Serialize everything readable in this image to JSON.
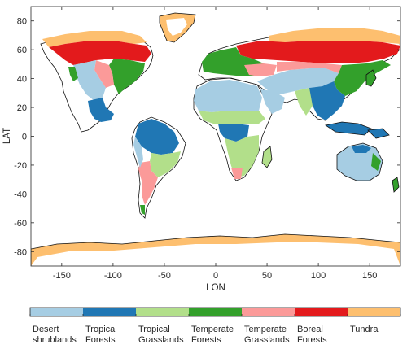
{
  "chart_data": {
    "type": "map",
    "xlabel": "LON",
    "ylabel": "LAT",
    "xlim": [
      -180,
      180
    ],
    "ylim": [
      -90,
      90
    ],
    "xticks": [
      "-150",
      "-100",
      "-50",
      "0",
      "50",
      "100",
      "150"
    ],
    "xtick_values": [
      -150,
      -100,
      -50,
      0,
      50,
      100,
      150
    ],
    "yticks": [
      "80",
      "60",
      "40",
      "20",
      "0",
      "-20",
      "-40",
      "-60",
      "-80"
    ],
    "ytick_values": [
      80,
      60,
      40,
      20,
      0,
      -20,
      -40,
      -60,
      -80
    ],
    "grid": false,
    "legend_placement": "bottom",
    "categories": [
      {
        "label_line1": "Desert",
        "label_line2": "shrublands",
        "color": "#a6cde3"
      },
      {
        "label_line1": "Tropical",
        "label_line2": "Forests",
        "color": "#2077b4"
      },
      {
        "label_line1": "Tropical",
        "label_line2": "Grasslands",
        "color": "#b2df8a"
      },
      {
        "label_line1": "Temperate",
        "label_line2": "Forests",
        "color": "#33a02b"
      },
      {
        "label_line1": "Temperate",
        "label_line2": "Grasslands",
        "color": "#fb9a99"
      },
      {
        "label_line1": "Boreal",
        "label_line2": "Forests",
        "color": "#e31a1c"
      },
      {
        "label_line1": "Tundra",
        "label_line2": "",
        "color": "#fdbf6f"
      }
    ],
    "regions": [
      {
        "name": "North America tundra",
        "category": 6,
        "lon": [
          -168,
          -60
        ],
        "lat": [
          62,
          74
        ]
      },
      {
        "name": "Greenland tundra",
        "category": 6,
        "lon": [
          -58,
          -22
        ],
        "lat": [
          64,
          82
        ]
      },
      {
        "name": "North America boreal",
        "category": 5,
        "lon": [
          -165,
          -55
        ],
        "lat": [
          52,
          66
        ]
      },
      {
        "name": "North America temperate forest",
        "category": 3,
        "lon": [
          -95,
          -65
        ],
        "lat": [
          32,
          50
        ]
      },
      {
        "name": "North America grassland",
        "category": 4,
        "lon": [
          -112,
          -95
        ],
        "lat": [
          32,
          52
        ]
      },
      {
        "name": "North America desert",
        "category": 0,
        "lon": [
          -125,
          -100
        ],
        "lat": [
          24,
          40
        ]
      },
      {
        "name": "Central America tropical forest",
        "category": 1,
        "lon": [
          -108,
          -80
        ],
        "lat": [
          8,
          24
        ]
      },
      {
        "name": "Amazon tropical forest",
        "category": 1,
        "lon": [
          -78,
          -38
        ],
        "lat": [
          -16,
          10
        ]
      },
      {
        "name": "South America grassland",
        "category": 2,
        "lon": [
          -65,
          -40
        ],
        "lat": [
          -32,
          -12
        ]
      },
      {
        "name": "South America temperate grassland",
        "category": 4,
        "lon": [
          -72,
          -60
        ],
        "lat": [
          -50,
          -20
        ]
      },
      {
        "name": "Sahara desert",
        "category": 0,
        "lon": [
          -17,
          38
        ],
        "lat": [
          14,
          36
        ]
      },
      {
        "name": "Arabia desert",
        "category": 0,
        "lon": [
          36,
          60
        ],
        "lat": [
          12,
          32
        ]
      },
      {
        "name": "Central Asia desert",
        "category": 0,
        "lon": [
          48,
          115
        ],
        "lat": [
          30,
          50
        ]
      },
      {
        "name": "Africa tropical forest",
        "category": 1,
        "lon": [
          10,
          30
        ],
        "lat": [
          -8,
          8
        ]
      },
      {
        "name": "Africa grassland north",
        "category": 2,
        "lon": [
          -15,
          40
        ],
        "lat": [
          6,
          14
        ]
      },
      {
        "name": "Africa grassland south",
        "category": 2,
        "lon": [
          12,
          40
        ],
        "lat": [
          -26,
          -8
        ]
      },
      {
        "name": "Europe temperate forest",
        "category": 3,
        "lon": [
          -8,
          40
        ],
        "lat": [
          42,
          58
        ]
      },
      {
        "name": "Eurasia boreal",
        "category": 5,
        "lon": [
          20,
          175
        ],
        "lat": [
          50,
          70
        ]
      },
      {
        "name": "Eurasia tundra",
        "category": 6,
        "lon": [
          50,
          180
        ],
        "lat": [
          66,
          78
        ]
      },
      {
        "name": "East Asia temperate forest",
        "category": 3,
        "lon": [
          100,
          140
        ],
        "lat": [
          28,
          52
        ]
      },
      {
        "name": "SE Asia tropical forest",
        "category": 1,
        "lon": [
          92,
          150
        ],
        "lat": [
          -10,
          24
        ]
      },
      {
        "name": "Australia desert",
        "category": 0,
        "lon": [
          114,
          150
        ],
        "lat": [
          -34,
          -14
        ]
      },
      {
        "name": "Antarctica tundra",
        "category": 6,
        "lon": [
          -180,
          180
        ],
        "lat": [
          -90,
          -72
        ]
      }
    ]
  }
}
